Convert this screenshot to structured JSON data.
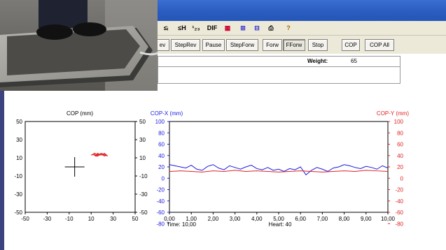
{
  "toolbar": {
    "icons": [
      {
        "name": "sort-asc-icon",
        "text": "≤ᵢ"
      },
      {
        "name": "sort-desc-icon",
        "text": "≤H"
      },
      {
        "name": "sort-num-icon",
        "text": "¹₂₃"
      },
      {
        "name": "dif-icon",
        "text": "DIF"
      },
      {
        "name": "chart-icon",
        "text": "▦"
      },
      {
        "name": "grid-icon",
        "text": "⊞"
      },
      {
        "name": "table-icon",
        "text": "⊟"
      },
      {
        "name": "print-icon",
        "text": "⎙"
      },
      {
        "name": "help-icon",
        "text": "?"
      }
    ],
    "buttons": [
      "ev",
      "StepRev",
      "Pause",
      "StepForw",
      "Forw",
      "FForw",
      "Stop",
      "COP",
      "COP All"
    ]
  },
  "info": {
    "weight_label": "Weight:",
    "weight_value": "65"
  },
  "footer": {
    "time": "Time: 10,00",
    "heart": "Heart: 40"
  },
  "chart_data": [
    {
      "type": "scatter",
      "title": "COP (mm)",
      "xlim": [
        -50,
        50
      ],
      "ylim": [
        -50,
        50
      ],
      "x_ticks": [
        "-50",
        "-30",
        "-10",
        "10",
        "30",
        "50"
      ],
      "y_ticks_left": [
        "50",
        "30",
        "10",
        "-10",
        "-30",
        "-50"
      ],
      "y_ticks_right": [
        "50",
        "30",
        "10",
        "-10",
        "-30",
        "-50"
      ],
      "center_marker": [
        -5,
        0
      ],
      "trace": {
        "color": "#e02222",
        "x": [
          10,
          12,
          14,
          16,
          18,
          20,
          22,
          24,
          22,
          20,
          18,
          16,
          14,
          12,
          15,
          19,
          23,
          25,
          21,
          17,
          13,
          11
        ],
        "y": [
          13,
          14,
          12,
          15,
          13,
          14,
          12,
          13,
          15,
          13,
          14,
          12,
          13,
          14,
          12,
          15,
          13,
          12,
          14,
          13,
          15,
          13
        ]
      }
    },
    {
      "type": "line",
      "x_ticks": [
        "0,00",
        "1,00",
        "2,00",
        "3,00",
        "4,00",
        "5,00",
        "6,00",
        "7,00",
        "8,00",
        "9,00",
        "10,00"
      ],
      "xlim": [
        0,
        10
      ],
      "left_axis": {
        "label": "COP-X (mm)",
        "color": "#1a1adf",
        "ticks": [
          "100",
          "80",
          "60",
          "40",
          "20",
          "0",
          "-20",
          "-40",
          "-60",
          "-80"
        ],
        "range": [
          -100,
          100
        ]
      },
      "right_axis": {
        "label": "COP-Y (mm)",
        "color": "#e02222",
        "ticks": [
          "100",
          "80",
          "60",
          "40",
          "20",
          "0",
          "-20",
          "-40",
          "-60",
          "-80"
        ],
        "range": [
          -100,
          100
        ]
      },
      "series": [
        {
          "name": "COP-X (mm)",
          "color": "#1a1adf",
          "x": [
            0,
            0.25,
            0.5,
            0.75,
            1,
            1.25,
            1.5,
            1.75,
            2,
            2.25,
            2.5,
            2.75,
            3,
            3.25,
            3.5,
            3.75,
            4,
            4.25,
            4.5,
            4.75,
            5,
            5.25,
            5.5,
            5.75,
            6,
            6.25,
            6.5,
            6.75,
            7,
            7.25,
            7.5,
            7.75,
            8,
            8.25,
            8.5,
            8.75,
            9,
            9.25,
            9.5,
            9.75,
            10
          ],
          "y": [
            24,
            22,
            20,
            18,
            23,
            16,
            14,
            21,
            24,
            18,
            15,
            22,
            19,
            16,
            20,
            23,
            17,
            15,
            19,
            14,
            16,
            12,
            17,
            15,
            20,
            6,
            14,
            19,
            16,
            12,
            18,
            20,
            24,
            22,
            19,
            17,
            21,
            19,
            16,
            22,
            18
          ]
        },
        {
          "name": "COP-Y (mm)",
          "color": "#e02222",
          "x": [
            0,
            0.5,
            1,
            1.5,
            2,
            2.5,
            3,
            3.5,
            4,
            4.5,
            5,
            5.5,
            6,
            6.5,
            7,
            7.5,
            8,
            8.5,
            9,
            9.5,
            10
          ],
          "y": [
            12,
            13,
            12,
            11,
            13,
            12,
            14,
            12,
            13,
            12,
            11,
            12,
            13,
            12,
            11,
            12,
            13,
            12,
            14,
            13,
            12
          ]
        }
      ]
    }
  ]
}
